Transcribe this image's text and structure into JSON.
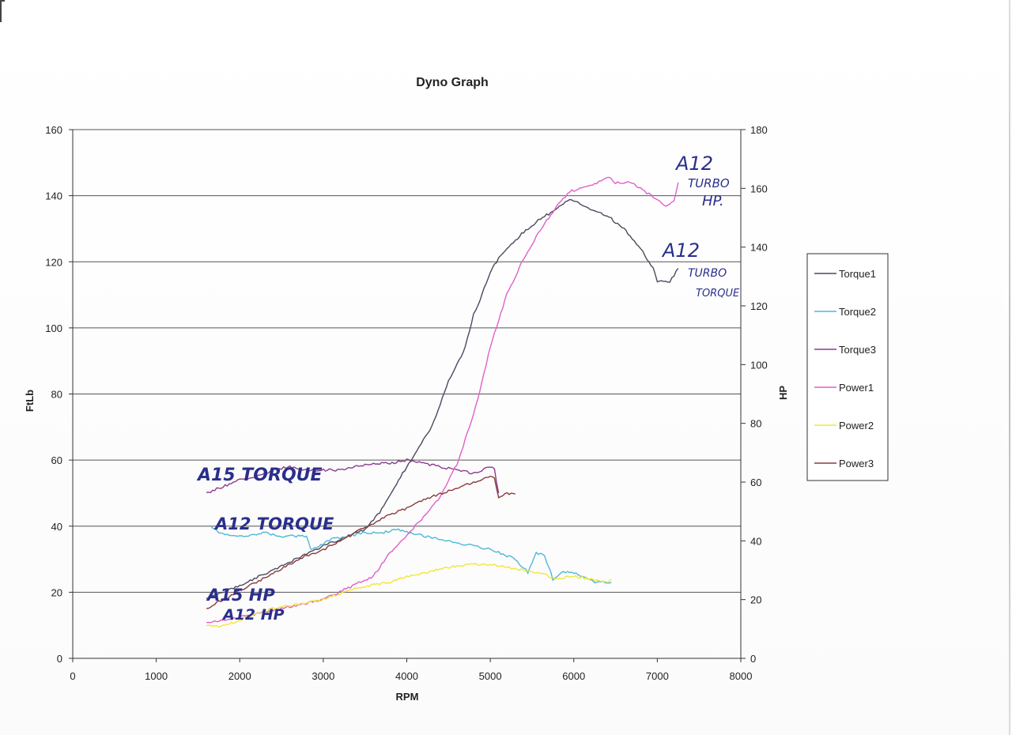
{
  "chart_data": {
    "type": "line",
    "title": "Dyno Graph",
    "xlabel": "RPM",
    "ylabel": "FtLb",
    "y2label": "HP",
    "xlim": [
      0,
      8000
    ],
    "ylim": [
      0,
      160
    ],
    "y2lim": [
      0,
      180
    ],
    "x_ticks": [
      "0",
      "1000",
      "2000",
      "3000",
      "4000",
      "5000",
      "6000",
      "7000",
      "8000"
    ],
    "y_ticks": [
      "0",
      "20",
      "40",
      "60",
      "80",
      "100",
      "120",
      "140",
      "160"
    ],
    "y2_ticks": [
      "0",
      "20",
      "40",
      "60",
      "80",
      "100",
      "120",
      "140",
      "160",
      "180"
    ],
    "grid": "horizontal",
    "legend": "right",
    "series": [
      {
        "name": "Torque1",
        "axis": "left",
        "color": "#4a4a5e",
        "x": [
          1600,
          2000,
          2500,
          3000,
          3300,
          3500,
          3700,
          3900,
          4100,
          4300,
          4500,
          4700,
          4800,
          4900,
          5000,
          5100,
          5200,
          5400,
          5600,
          5800,
          5950,
          6050,
          6200,
          6400,
          6600,
          6800,
          6950,
          7000,
          7050,
          7150,
          7250
        ],
        "values": [
          18,
          22,
          28,
          34,
          37,
          39,
          45,
          54,
          62,
          70,
          84,
          94,
          104,
          110,
          117,
          121,
          124,
          129,
          133,
          136,
          139,
          138,
          136,
          134,
          130,
          124,
          118,
          114,
          114,
          114,
          118
        ]
      },
      {
        "name": "Torque2",
        "axis": "left",
        "color": "#4fb8d6",
        "x": [
          1650,
          1750,
          1900,
          2100,
          2300,
          2500,
          2700,
          2800,
          2850,
          2950,
          3100,
          3300,
          3500,
          3700,
          3900,
          4200,
          4600,
          5000,
          5300,
          5450,
          5550,
          5650,
          5750,
          5850,
          5950,
          6100,
          6250,
          6350,
          6450
        ],
        "values": [
          40,
          38,
          37,
          37,
          38,
          37,
          37,
          37,
          33,
          34,
          36,
          37,
          38,
          38,
          39,
          37,
          35,
          33,
          30,
          26,
          32,
          31,
          24,
          26,
          26,
          25,
          23,
          23,
          23
        ]
      },
      {
        "name": "Torque3",
        "axis": "left",
        "color": "#8a3c8c",
        "x": [
          1600,
          1800,
          2000,
          2200,
          2400,
          2600,
          2800,
          3000,
          3200,
          3400,
          3600,
          3800,
          4000,
          4200,
          4400,
          4600,
          4800,
          4900,
          5000,
          5050,
          5100
        ],
        "values": [
          50,
          52,
          54,
          55,
          57,
          58,
          57,
          57,
          57,
          58,
          59,
          59,
          60,
          59,
          58,
          57,
          56,
          57,
          58,
          57,
          50
        ]
      },
      {
        "name": "Power1",
        "axis": "right",
        "color": "#e060c8",
        "x": [
          1600,
          2000,
          2500,
          3000,
          3300,
          3600,
          3800,
          4000,
          4200,
          4400,
          4600,
          4800,
          4900,
          5000,
          5200,
          5400,
          5600,
          5800,
          5950,
          6100,
          6300,
          6400,
          6500,
          6700,
          6900,
          7000,
          7100,
          7200,
          7250
        ],
        "values": [
          12,
          14,
          17,
          20,
          24,
          28,
          36,
          42,
          48,
          55,
          66,
          83,
          94,
          106,
          124,
          136,
          146,
          154,
          159,
          160,
          162,
          164,
          162,
          162,
          158,
          156,
          154,
          156,
          162
        ]
      },
      {
        "name": "Power2",
        "axis": "right",
        "color": "#f2e63a",
        "x": [
          1600,
          1800,
          2000,
          2200,
          2400,
          2600,
          2800,
          3000,
          3200,
          3400,
          3600,
          3800,
          4000,
          4200,
          4500,
          4800,
          5000,
          5200,
          5400,
          5600,
          5800,
          6000,
          6200,
          6400,
          6450
        ],
        "values": [
          11,
          11,
          13,
          15,
          17,
          18,
          19,
          20,
          22,
          24,
          25,
          26,
          28,
          29,
          31,
          32,
          32,
          31,
          30,
          29,
          27,
          28,
          27,
          26,
          27
        ]
      },
      {
        "name": "Power3",
        "axis": "right",
        "color": "#8b3a3a",
        "x": [
          1600,
          1800,
          2000,
          2200,
          2400,
          2600,
          2800,
          3000,
          3200,
          3400,
          3600,
          3800,
          4000,
          4200,
          4400,
          4600,
          4800,
          4900,
          5000,
          5050,
          5100,
          5200,
          5300
        ],
        "values": [
          17,
          20,
          23,
          26,
          29,
          32,
          35,
          37,
          40,
          43,
          46,
          49,
          51,
          54,
          56,
          58,
          60,
          61,
          62,
          61,
          55,
          56,
          56
        ]
      }
    ],
    "annotations": {
      "a12_turbo_hp": [
        "A12",
        "TURBO",
        "HP."
      ],
      "a12_turbo_torque": [
        "A12",
        "TURBO",
        "TORQUE"
      ],
      "a15_torque": "A15 TORQUE",
      "a12_torque": "A12 TORQUE",
      "a15_hp": "A15 HP",
      "a12_hp": "A12 HP"
    }
  }
}
